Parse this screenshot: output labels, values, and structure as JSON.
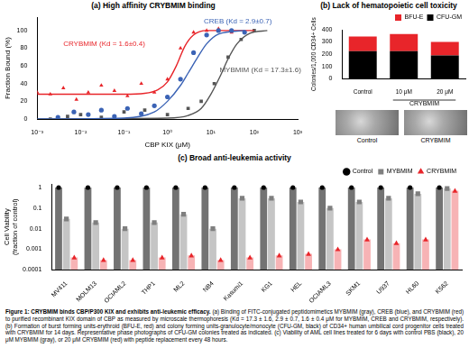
{
  "chart_data": [
    {
      "type": "scatter",
      "title": "(a) High affinity CRYBMIM binding",
      "xlabel": "CBP KIX (μM)",
      "ylabel": "Fraction Bound (%)",
      "log": "x",
      "grid": false,
      "xlim": [
        0.001,
        1000
      ],
      "xticks": [
        {
          "value": 0.001,
          "label": "10⁻³"
        },
        {
          "value": 0.01,
          "label": "10⁻²"
        },
        {
          "value": 0.1,
          "label": "10⁻¹"
        },
        {
          "value": 1,
          "label": "10⁰"
        },
        {
          "value": 10,
          "label": "10¹"
        },
        {
          "value": 100,
          "label": "10²"
        },
        {
          "value": 1000,
          "label": "10³"
        }
      ],
      "ylim": [
        0,
        115
      ],
      "yticks": [
        0,
        20,
        40,
        60,
        80,
        100
      ],
      "series": [
        {
          "name": "CREB (Kd = 2.9±0.7)",
          "color": "#3b63b5",
          "marker": "circle",
          "x": [
            0.003,
            0.007,
            0.015,
            0.03,
            0.06,
            0.12,
            0.25,
            0.5,
            1,
            2,
            4,
            8,
            15,
            30,
            60
          ],
          "values": [
            2,
            8,
            5,
            10,
            3,
            12,
            6,
            15,
            25,
            45,
            75,
            95,
            100,
            100,
            98
          ],
          "fit": {
            "x": [
              0.001,
              0.1,
              0.5,
              1,
              2,
              3,
              5,
              8,
              15,
              60
            ],
            "values": [
              0,
              1,
              8,
              20,
              38,
              52,
              70,
              85,
              96,
              100
            ]
          }
        },
        {
          "name": "CRYBMIM (Kd = 1.6±0.4)",
          "color": "#e8252a",
          "marker": "triangle",
          "x": [
            0.001,
            0.002,
            0.004,
            0.008,
            0.015,
            0.03,
            0.06,
            0.12,
            0.25,
            0.5,
            1,
            2,
            4,
            8,
            15,
            30
          ],
          "values": [
            30,
            28,
            35,
            22,
            30,
            38,
            32,
            26,
            40,
            30,
            45,
            80,
            98,
            100,
            102,
            98
          ],
          "fit": {
            "x": [
              0.001,
              0.01,
              0.1,
              0.3,
              0.6,
              1,
              1.6,
              2.5,
              4,
              8,
              30,
              100
            ],
            "values": [
              28,
              28,
              28,
              29,
              33,
              42,
              60,
              82,
              95,
              100,
              100,
              100
            ]
          }
        },
        {
          "name": "MYBMIM (Kd = 17.3±1.6)",
          "color": "#555555",
          "marker": "square",
          "x": [
            0.002,
            0.005,
            0.01,
            0.03,
            0.1,
            0.3,
            1,
            3,
            6,
            12,
            25,
            50,
            100
          ],
          "values": [
            0,
            3,
            5,
            2,
            8,
            10,
            5,
            12,
            20,
            40,
            70,
            90,
            100
          ],
          "fit": {
            "x": [
              0.001,
              1,
              3,
              6,
              10,
              17,
              25,
              40,
              80,
              200
            ],
            "values": [
              0,
              1,
              4,
              12,
              28,
              50,
              68,
              85,
              97,
              100
            ]
          }
        }
      ]
    },
    {
      "type": "bar",
      "title": "(b) Lack of hematopoietic cell toxicity",
      "ylabel": "Colonies/1,000 CD34+ Cells",
      "xlabel": "CRYBMIM",
      "stacked": true,
      "grid": false,
      "legend": "top-right",
      "categories": [
        "Control",
        "10 μM",
        "20 μM"
      ],
      "ylim": [
        0,
        400
      ],
      "yticks": [
        0,
        100,
        200,
        300,
        400
      ],
      "series": [
        {
          "name": "CFU-GM",
          "color": "#000000",
          "values": [
            225,
            225,
            190
          ]
        },
        {
          "name": "BFU-E",
          "color": "#e8252a",
          "values": [
            120,
            140,
            110
          ]
        }
      ]
    },
    {
      "type": "bar",
      "title": "(c) Broad anti-leukemia activity",
      "ylabel": [
        "Cell Viability",
        "(fraction of control)"
      ],
      "log": "y",
      "grid": false,
      "legend": "top-right",
      "categories": [
        "MV411",
        "MOLM13",
        "OCIAML2",
        "THP1",
        "ML2",
        "NB4",
        "Kasumi1",
        "KG1",
        "HEL",
        "OCIAML3",
        "SKM1",
        "U937",
        "HL60",
        "K562"
      ],
      "ylim": [
        0.0001,
        1.5
      ],
      "yticks": [
        0.0001,
        0.001,
        0.01,
        0.1,
        1
      ],
      "series": [
        {
          "name": "Control",
          "color": "#000000",
          "marker": "circle",
          "values": [
            1,
            1,
            1,
            1,
            1,
            1,
            1,
            1,
            1,
            1,
            1,
            1,
            1,
            1
          ]
        },
        {
          "name": "MYBMIM",
          "color": "#7f7f7f",
          "marker": "square",
          "values": [
            0.03,
            0.02,
            0.01,
            0.02,
            0.05,
            0.01,
            0.3,
            0.3,
            0.2,
            0.1,
            0.2,
            0.3,
            0.5,
            0.9
          ]
        },
        {
          "name": "CRYBMIM",
          "color": "#e8252a",
          "marker": "triangle",
          "values": [
            0.0004,
            0.0003,
            0.0003,
            0.0004,
            0.0005,
            0.0003,
            0.0004,
            0.0005,
            0.0006,
            0.001,
            0.003,
            0.002,
            0.003,
            0.7
          ]
        }
      ]
    }
  ],
  "photos": [
    "Control",
    "CRYBMIM"
  ],
  "caption": {
    "bold": "Figure 1: CRYBMIM binds CBP/P300 KIX and exhibits anti-leukemic efficacy.",
    "text": " (a) Binding of FITC-conjugated peptidomimetics MYBMIM (gray), CREB (blue), and CRYBMIM (red) to purified recombinant KIX domain of CBP as measured by microscale thermophoresis (Kd = 17.3 ± 1.6, 2.9 ± 0.7, 1.6 ± 0.4 μM for MYBMIM, CREB and CRYBMIM, respectively). (b) Formation of burst forming units-erythroid (BFU-E, red) and colony forming units-granulocyte/monocyte (CFU-GM, black) of CD34+ human umbilical cord progenitor cells treated with CRYBMIM for 14 days. Representative phase photographs of CFU-GM colonies treated as indicated. (c) Viability of AML cell lines treated for 6 days with control PBS (black), 20 μM MYBMIM (gray), or 20 μM CRYBMIM (red) with peptide replacement every 48 hours."
  }
}
